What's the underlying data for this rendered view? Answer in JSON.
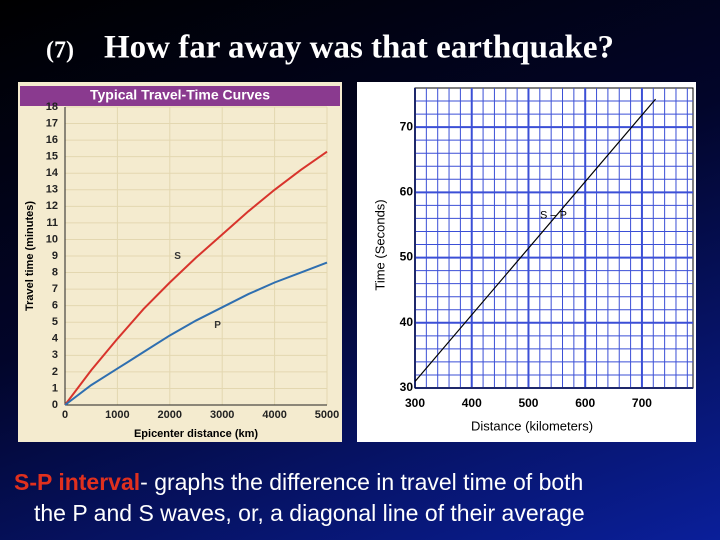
{
  "slide": {
    "number": "(7)",
    "title": "How far away was that earthquake?",
    "caption": {
      "highlight": "S-P interval",
      "line1": "- graphs the difference in travel time of both",
      "line2": "the P and S waves, or, a diagonal line of their average"
    }
  },
  "chart_data": [
    {
      "type": "line",
      "title": "Typical Travel-Time Curves",
      "x_label": "Epicenter distance (km)",
      "y_label": "Travel time (minutes)",
      "x": [
        0,
        500,
        1000,
        1500,
        2000,
        2500,
        3000,
        3500,
        4000,
        4500,
        5000
      ],
      "series": [
        {
          "name": "S",
          "color": "#d8342c",
          "values": [
            0,
            2.1,
            4.0,
            5.8,
            7.4,
            8.9,
            10.3,
            11.7,
            13.0,
            14.2,
            15.3
          ]
        },
        {
          "name": "P",
          "color": "#2f6fb0",
          "values": [
            0,
            1.2,
            2.2,
            3.2,
            4.2,
            5.1,
            5.9,
            6.7,
            7.4,
            8.0,
            8.6
          ]
        }
      ],
      "xlim": [
        0,
        5000
      ],
      "xticks": [
        0,
        1000,
        2000,
        3000,
        4000,
        5000
      ],
      "ylim": [
        0,
        18
      ],
      "yticks": [
        0,
        1,
        2,
        3,
        4,
        5,
        6,
        7,
        8,
        9,
        10,
        11,
        12,
        13,
        14,
        15,
        16,
        17,
        18
      ],
      "grid": true
    },
    {
      "type": "line",
      "x_label": "Distance (kilometers)",
      "y_label": "Time (Seconds)",
      "x": [
        300,
        724
      ],
      "series": [
        {
          "name": "S – P",
          "color": "#000000",
          "values": [
            31,
            74.3
          ]
        }
      ],
      "xlim": [
        300,
        790
      ],
      "xticks": [
        300,
        400,
        500,
        600,
        700
      ],
      "ylim": [
        30,
        76
      ],
      "yticks": [
        30,
        40,
        50,
        60,
        70
      ],
      "grid": true
    }
  ]
}
